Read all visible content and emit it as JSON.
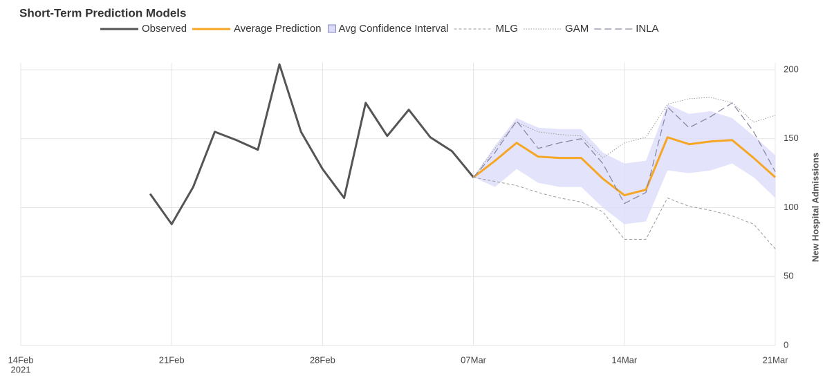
{
  "chart_data": {
    "type": "line",
    "title": "Short-Term Prediction Models",
    "y_label": "New Hospital Admissions",
    "xlim": [
      "2021-02-14",
      "2021-03-21"
    ],
    "xticks": [
      {
        "value": "2021-02-14",
        "label": "14Feb"
      },
      {
        "value": "2021-02-21",
        "label": "21Feb"
      },
      {
        "value": "2021-02-28",
        "label": "28Feb"
      },
      {
        "value": "2021-03-07",
        "label": "07Mar"
      },
      {
        "value": "2021-03-14",
        "label": "14Mar"
      },
      {
        "value": "2021-03-21",
        "label": "21Mar"
      }
    ],
    "x_year_label": "2021",
    "ylim": [
      0,
      200
    ],
    "yticks": [
      0,
      50,
      100,
      150,
      200
    ],
    "grid": true,
    "legend": "top",
    "series": [
      {
        "name": "Observed",
        "kind": "line",
        "color": "#555555",
        "width": 3,
        "x": [
          "2021-02-20",
          "2021-02-21",
          "2021-02-22",
          "2021-02-23",
          "2021-02-24",
          "2021-02-25",
          "2021-02-26",
          "2021-02-27",
          "2021-02-28",
          "2021-03-01",
          "2021-03-02",
          "2021-03-03",
          "2021-03-04",
          "2021-03-05",
          "2021-03-06",
          "2021-03-07"
        ],
        "values": [
          110,
          88,
          115,
          155,
          149,
          142,
          204,
          155,
          128,
          107,
          176,
          152,
          171,
          151,
          141,
          122
        ]
      },
      {
        "name": "Average Prediction",
        "kind": "line",
        "color": "#f5a623",
        "width": 3,
        "x": [
          "2021-03-07",
          "2021-03-08",
          "2021-03-09",
          "2021-03-10",
          "2021-03-11",
          "2021-03-12",
          "2021-03-13",
          "2021-03-14",
          "2021-03-15",
          "2021-03-16",
          "2021-03-17",
          "2021-03-18",
          "2021-03-19",
          "2021-03-20",
          "2021-03-21"
        ],
        "values": [
          122,
          134,
          147,
          137,
          136,
          136,
          121,
          109,
          113,
          151,
          146,
          148,
          149,
          136,
          122
        ]
      },
      {
        "name": "Avg Confidence Interval",
        "kind": "band",
        "color": "#dcdcfa",
        "x": [
          "2021-03-07",
          "2021-03-08",
          "2021-03-09",
          "2021-03-10",
          "2021-03-11",
          "2021-03-12",
          "2021-03-13",
          "2021-03-14",
          "2021-03-15",
          "2021-03-16",
          "2021-03-17",
          "2021-03-18",
          "2021-03-19",
          "2021-03-20",
          "2021-03-21"
        ],
        "upper": [
          122,
          145,
          165,
          158,
          157,
          157,
          140,
          132,
          134,
          175,
          168,
          170,
          165,
          152,
          138
        ],
        "lower": [
          122,
          115,
          128,
          118,
          115,
          115,
          100,
          88,
          90,
          127,
          125,
          127,
          132,
          122,
          107
        ]
      },
      {
        "name": "MLG",
        "kind": "line",
        "color": "#9a9a9a",
        "width": 1,
        "dash": "4,3",
        "x": [
          "2021-03-07",
          "2021-03-08",
          "2021-03-09",
          "2021-03-10",
          "2021-03-11",
          "2021-03-12",
          "2021-03-13",
          "2021-03-14",
          "2021-03-15",
          "2021-03-16",
          "2021-03-17",
          "2021-03-18",
          "2021-03-19",
          "2021-03-20",
          "2021-03-21"
        ],
        "values": [
          122,
          119,
          116,
          111,
          107,
          104,
          97,
          77,
          77,
          107,
          101,
          98,
          94,
          88,
          70
        ]
      },
      {
        "name": "GAM",
        "kind": "line",
        "color": "#9a9a9a",
        "width": 1,
        "dash": "1.5,2",
        "x": [
          "2021-03-07",
          "2021-03-08",
          "2021-03-09",
          "2021-03-10",
          "2021-03-11",
          "2021-03-12",
          "2021-03-13",
          "2021-03-14",
          "2021-03-15",
          "2021-03-16",
          "2021-03-17",
          "2021-03-18",
          "2021-03-19",
          "2021-03-20",
          "2021-03-21"
        ],
        "values": [
          122,
          143,
          162,
          155,
          153,
          152,
          136,
          147,
          151,
          175,
          179,
          180,
          176,
          162,
          167
        ]
      },
      {
        "name": "INLA",
        "kind": "line",
        "color": "#8a8aa8",
        "width": 1.3,
        "dash": "10,5",
        "x": [
          "2021-03-07",
          "2021-03-08",
          "2021-03-09",
          "2021-03-10",
          "2021-03-11",
          "2021-03-12",
          "2021-03-13",
          "2021-03-14",
          "2021-03-15",
          "2021-03-16",
          "2021-03-17",
          "2021-03-18",
          "2021-03-19",
          "2021-03-20",
          "2021-03-21"
        ],
        "values": [
          122,
          140,
          163,
          143,
          147,
          150,
          132,
          103,
          111,
          173,
          158,
          166,
          176,
          155,
          126
        ]
      }
    ]
  }
}
